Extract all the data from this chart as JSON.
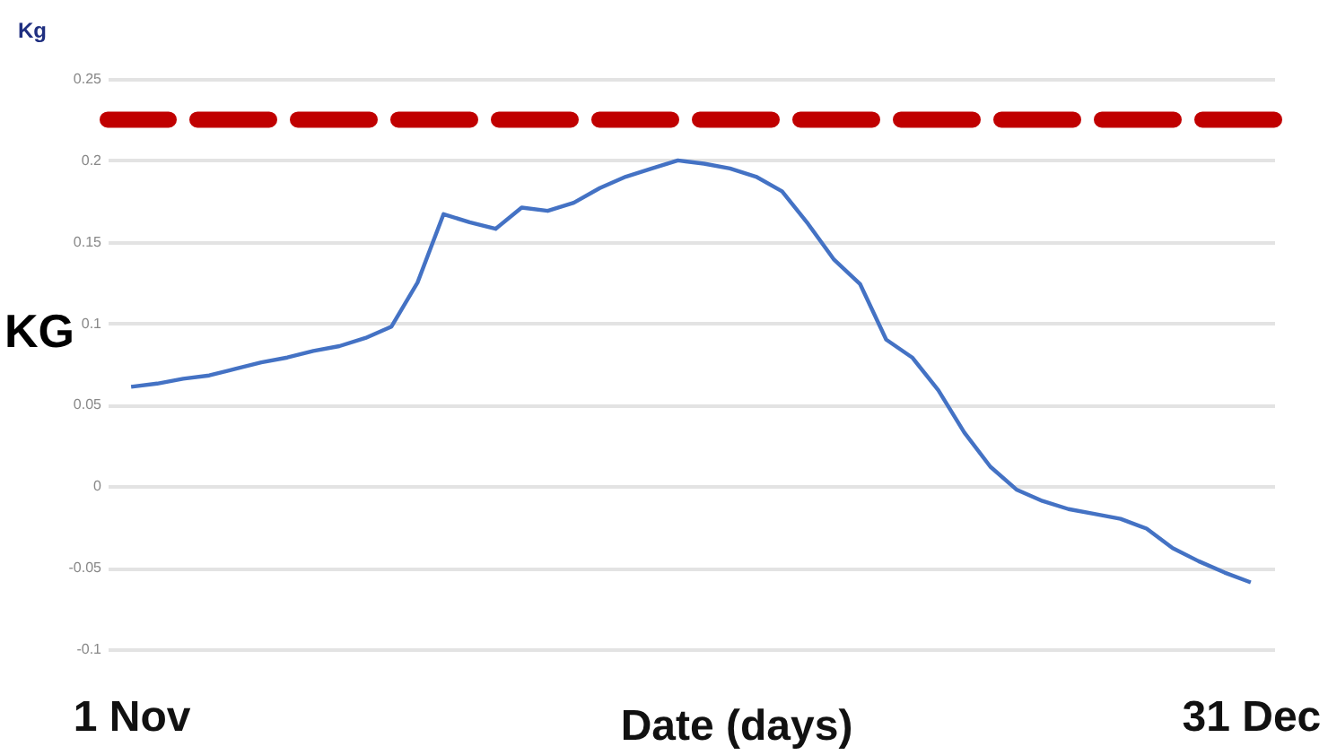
{
  "chart_data": {
    "type": "line",
    "xlabel": "Date (days)",
    "ylabel": "KG",
    "annotations": [
      "Kg"
    ],
    "categories": [
      "1 Nov",
      null,
      null,
      null,
      null,
      null,
      null,
      null,
      null,
      null,
      null,
      null,
      null,
      null,
      null,
      null,
      null,
      null,
      null,
      null,
      null,
      null,
      null,
      null,
      null,
      null,
      null,
      null,
      null,
      null,
      null,
      null,
      null,
      null,
      null,
      null,
      null,
      null,
      null,
      null,
      null,
      null,
      null,
      "31 Dec"
    ],
    "series": [
      {
        "color": "#4472c4",
        "values": [
          0.061,
          0.063,
          0.066,
          0.068,
          0.072,
          0.076,
          0.079,
          0.083,
          0.086,
          0.091,
          0.098,
          0.125,
          0.167,
          0.162,
          0.158,
          0.171,
          0.169,
          0.174,
          0.183,
          0.19,
          0.195,
          0.2,
          0.198,
          0.195,
          0.19,
          0.181,
          0.161,
          0.139,
          0.124,
          0.09,
          0.079,
          0.059,
          0.033,
          0.012,
          -0.002,
          -0.009,
          -0.014,
          -0.017,
          -0.02,
          -0.026,
          -0.038,
          -0.046,
          -0.053,
          -0.059
        ]
      }
    ],
    "ylim": [
      -0.1,
      0.25
    ],
    "yticks": [
      -0.1,
      -0.05,
      0,
      0.05,
      0.1,
      0.15,
      0.2,
      0.25
    ],
    "grid": "y",
    "ref_lines": [
      {
        "axis": "y",
        "value": 0.225,
        "color": "#c00000",
        "line_style": "dashed"
      }
    ]
  }
}
